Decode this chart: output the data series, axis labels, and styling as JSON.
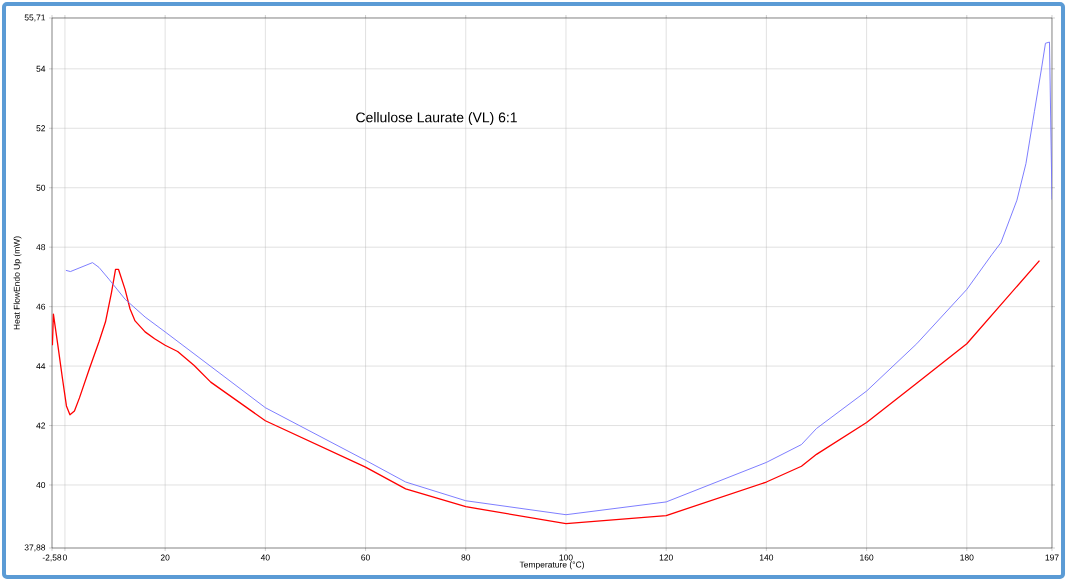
{
  "chart_data": {
    "type": "line",
    "title": "Cellulose Laurate (VL) 6:1",
    "xlabel": "Temperature (°C)",
    "ylabel": "Heat FlowEndo Up (mW)",
    "xlim": [
      -2.58,
      197
    ],
    "ylim": [
      37.88,
      55.71
    ],
    "xticks": [
      {
        "value": -2.58,
        "label": "-2,58"
      },
      0,
      20,
      40,
      60,
      80,
      100,
      120,
      140,
      160,
      180,
      197
    ],
    "yticks": [
      {
        "value": 37.88,
        "label": "37,88"
      },
      40,
      42,
      44,
      46,
      48,
      50,
      52,
      54,
      {
        "value": 55.71,
        "label": "55,71"
      }
    ],
    "grid": true,
    "series": [
      {
        "color": "#ff0000",
        "x": [
          -2.5,
          -2.3,
          -1.4,
          -0.5,
          0.3,
          1.0,
          1.9,
          2.9,
          4.9,
          6.8,
          8.1,
          9.3,
          10.1,
          10.7,
          12.0,
          13.0,
          14.0,
          16.0,
          17.9,
          20,
          22.5,
          25.8,
          29.1,
          40,
          60,
          68,
          80,
          100,
          120,
          140,
          147,
          150,
          160,
          170,
          180,
          194.5
        ],
        "values": [
          44.7,
          45.75,
          44.69,
          43.59,
          42.66,
          42.36,
          42.49,
          42.93,
          43.92,
          44.82,
          45.49,
          46.48,
          47.25,
          47.25,
          46.58,
          45.92,
          45.52,
          45.15,
          44.92,
          44.7,
          44.49,
          44.02,
          43.46,
          42.16,
          40.6,
          39.87,
          39.27,
          38.7,
          38.97,
          40.1,
          40.63,
          41.03,
          42.1,
          43.42,
          44.75,
          47.55
        ]
      },
      {
        "color": "#6f6fff",
        "x": [
          0.2,
          1.1,
          5.5,
          6.8,
          8.8,
          12.0,
          16.0,
          20,
          40,
          60,
          68,
          80,
          100,
          120,
          140,
          147,
          150,
          160,
          170,
          180,
          185,
          186.8,
          190,
          191.8,
          193.5,
          194.9,
          195.7,
          196.5,
          197
        ],
        "values": [
          47.22,
          47.18,
          47.48,
          47.32,
          46.92,
          46.25,
          45.65,
          45.15,
          42.6,
          40.83,
          40.1,
          39.47,
          39.0,
          39.43,
          40.76,
          41.36,
          41.9,
          43.16,
          44.75,
          46.58,
          47.75,
          48.15,
          49.58,
          50.81,
          52.57,
          54.0,
          54.86,
          54.9,
          49.6
        ]
      }
    ]
  }
}
